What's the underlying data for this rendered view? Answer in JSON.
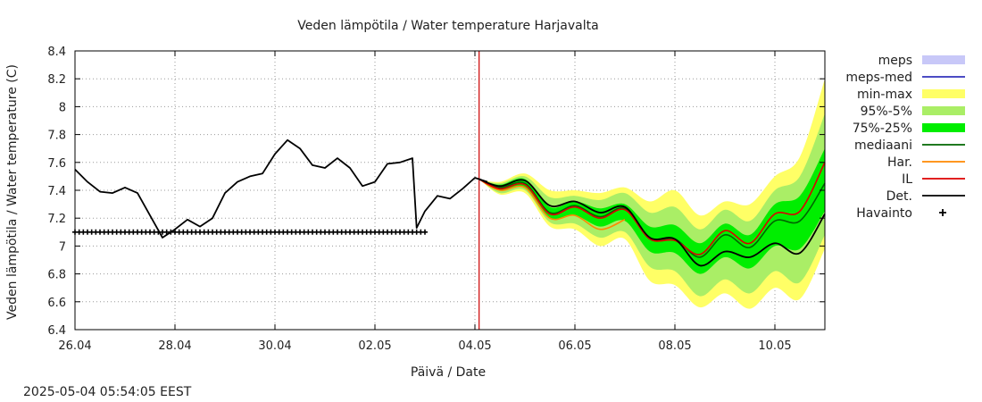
{
  "chart_data": {
    "type": "line",
    "title": "Veden lämpötila / Water temperature Harjavalta",
    "xlabel": "Päivä / Date",
    "ylabel": "Veden lämpötila / Water temperature (C)",
    "timestamp": "2025-05-04  05:54:05 EEST",
    "x_range": [
      "2025-04-26",
      "2025-05-11"
    ],
    "ylim": [
      6.4,
      8.4
    ],
    "x_tick_labels": [
      "26.04",
      "28.04",
      "30.04",
      "02.05",
      "04.05",
      "06.05",
      "08.05",
      "10.05"
    ],
    "x_tick_dates": [
      "2025-04-26",
      "2025-04-28",
      "2025-04-30",
      "2025-05-02",
      "2025-05-04",
      "2025-05-06",
      "2025-05-08",
      "2025-05-10"
    ],
    "y_ticks": [
      "6.4",
      "6.6",
      "6.8",
      "7",
      "7.2",
      "7.4",
      "7.6",
      "7.8",
      "8",
      "8.2",
      "8.4"
    ],
    "grid": true,
    "forecast_start": "2025-05-04 02:00",
    "legend_position": "right",
    "legend": [
      {
        "label": "meps",
        "kind": "fill",
        "color": "#c8c8f8"
      },
      {
        "label": "meps-med",
        "kind": "line",
        "color": "#3333bb"
      },
      {
        "label": "min-max",
        "kind": "fill",
        "color": "#ffff66"
      },
      {
        "label": "95%-5%",
        "kind": "fill",
        "color": "#aaee66"
      },
      {
        "label": "75%-25%",
        "kind": "fill",
        "color": "#00ee00"
      },
      {
        "label": "mediaani",
        "kind": "line",
        "color": "#006600"
      },
      {
        "label": "Har.",
        "kind": "line",
        "color": "#ff8800"
      },
      {
        "label": "IL",
        "kind": "line",
        "color": "#dd0000"
      },
      {
        "label": "Det.",
        "kind": "line",
        "color": "#000000"
      },
      {
        "label": "Havainto",
        "kind": "marker",
        "color": "#000000"
      }
    ],
    "series": {
      "observed": [
        [
          "2025-04-26 00:00",
          7.55
        ],
        [
          "2025-04-26 06:00",
          7.46
        ],
        [
          "2025-04-26 12:00",
          7.39
        ],
        [
          "2025-04-26 18:00",
          7.38
        ],
        [
          "2025-04-27 00:00",
          7.42
        ],
        [
          "2025-04-27 06:00",
          7.38
        ],
        [
          "2025-04-27 12:00",
          7.22
        ],
        [
          "2025-04-27 18:00",
          7.06
        ],
        [
          "2025-04-28 00:00",
          7.12
        ],
        [
          "2025-04-28 06:00",
          7.19
        ],
        [
          "2025-04-28 12:00",
          7.14
        ],
        [
          "2025-04-28 18:00",
          7.2
        ],
        [
          "2025-04-29 00:00",
          7.38
        ],
        [
          "2025-04-29 06:00",
          7.46
        ],
        [
          "2025-04-29 12:00",
          7.5
        ],
        [
          "2025-04-29 18:00",
          7.52
        ],
        [
          "2025-04-30 00:00",
          7.66
        ],
        [
          "2025-04-30 06:00",
          7.76
        ],
        [
          "2025-04-30 12:00",
          7.7
        ],
        [
          "2025-04-30 18:00",
          7.58
        ],
        [
          "2025-05-01 00:00",
          7.56
        ],
        [
          "2025-05-01 06:00",
          7.63
        ],
        [
          "2025-05-01 12:00",
          7.56
        ],
        [
          "2025-05-01 18:00",
          7.43
        ],
        [
          "2025-05-02 00:00",
          7.46
        ],
        [
          "2025-05-02 06:00",
          7.59
        ],
        [
          "2025-05-02 12:00",
          7.6
        ],
        [
          "2025-05-02 18:00",
          7.63
        ],
        [
          "2025-05-02 20:00",
          7.13
        ],
        [
          "2025-05-03 00:00",
          7.25
        ],
        [
          "2025-05-03 06:00",
          7.36
        ],
        [
          "2025-05-03 12:00",
          7.34
        ],
        [
          "2025-05-03 18:00",
          7.41
        ],
        [
          "2025-05-04 00:00",
          7.49
        ],
        [
          "2025-05-04 06:00",
          7.46
        ]
      ],
      "det": [
        [
          "2025-05-04 02:00",
          7.48
        ],
        [
          "2025-05-04 12:00",
          7.43
        ],
        [
          "2025-05-05 00:00",
          7.47
        ],
        [
          "2025-05-05 12:00",
          7.29
        ],
        [
          "2025-05-06 00:00",
          7.32
        ],
        [
          "2025-05-06 12:00",
          7.24
        ],
        [
          "2025-05-07 00:00",
          7.28
        ],
        [
          "2025-05-07 12:00",
          7.06
        ],
        [
          "2025-05-08 00:00",
          7.05
        ],
        [
          "2025-05-08 12:00",
          6.86
        ],
        [
          "2025-05-09 00:00",
          6.96
        ],
        [
          "2025-05-09 12:00",
          6.92
        ],
        [
          "2025-05-10 00:00",
          7.02
        ],
        [
          "2025-05-10 12:00",
          6.95
        ],
        [
          "2025-05-11 00:00",
          7.23
        ]
      ],
      "il": [
        [
          "2025-05-04 02:00",
          7.48
        ],
        [
          "2025-05-04 12:00",
          7.41
        ],
        [
          "2025-05-05 00:00",
          7.44
        ],
        [
          "2025-05-05 12:00",
          7.23
        ],
        [
          "2025-05-06 00:00",
          7.28
        ],
        [
          "2025-05-06 12:00",
          7.2
        ],
        [
          "2025-05-07 00:00",
          7.26
        ],
        [
          "2025-05-07 12:00",
          7.05
        ],
        [
          "2025-05-08 00:00",
          7.04
        ],
        [
          "2025-05-08 12:00",
          6.94
        ],
        [
          "2025-05-09 00:00",
          7.11
        ],
        [
          "2025-05-09 12:00",
          7.02
        ],
        [
          "2025-05-10 00:00",
          7.23
        ],
        [
          "2025-05-10 12:00",
          7.25
        ],
        [
          "2025-05-11 00:00",
          7.6
        ]
      ],
      "har": [
        [
          "2025-05-04 02:00",
          7.48
        ],
        [
          "2025-05-04 12:00",
          7.4
        ],
        [
          "2025-05-05 00:00",
          7.42
        ],
        [
          "2025-05-05 12:00",
          7.2
        ],
        [
          "2025-05-06 00:00",
          7.22
        ],
        [
          "2025-05-06 12:00",
          7.12
        ],
        [
          "2025-05-07 00:00",
          7.19
        ]
      ],
      "median": [
        [
          "2025-05-04 02:00",
          7.48
        ],
        [
          "2025-05-04 12:00",
          7.42
        ],
        [
          "2025-05-05 00:00",
          7.45
        ],
        [
          "2025-05-05 12:00",
          7.24
        ],
        [
          "2025-05-06 00:00",
          7.29
        ],
        [
          "2025-05-06 12:00",
          7.21
        ],
        [
          "2025-05-07 00:00",
          7.27
        ],
        [
          "2025-05-07 12:00",
          7.05
        ],
        [
          "2025-05-08 00:00",
          7.05
        ],
        [
          "2025-05-08 12:00",
          6.92
        ],
        [
          "2025-05-09 00:00",
          7.08
        ],
        [
          "2025-05-09 12:00",
          6.99
        ],
        [
          "2025-05-10 00:00",
          7.18
        ],
        [
          "2025-05-10 12:00",
          7.18
        ],
        [
          "2025-05-11 00:00",
          7.45
        ]
      ],
      "band_min_max": [
        [
          "2025-05-04 02:00",
          7.48,
          7.48
        ],
        [
          "2025-05-04 12:00",
          7.37,
          7.46
        ],
        [
          "2025-05-05 00:00",
          7.38,
          7.52
        ],
        [
          "2025-05-05 12:00",
          7.14,
          7.4
        ],
        [
          "2025-05-06 00:00",
          7.12,
          7.4
        ],
        [
          "2025-05-06 12:00",
          7.0,
          7.38
        ],
        [
          "2025-05-07 00:00",
          7.05,
          7.42
        ],
        [
          "2025-05-07 12:00",
          6.75,
          7.32
        ],
        [
          "2025-05-08 00:00",
          6.72,
          7.4
        ],
        [
          "2025-05-08 12:00",
          6.56,
          7.22
        ],
        [
          "2025-05-09 00:00",
          6.66,
          7.32
        ],
        [
          "2025-05-09 12:00",
          6.55,
          7.3
        ],
        [
          "2025-05-10 00:00",
          6.7,
          7.5
        ],
        [
          "2025-05-10 12:00",
          6.62,
          7.64
        ],
        [
          "2025-05-11 00:00",
          6.98,
          8.2
        ]
      ],
      "band_95_5": [
        [
          "2025-05-04 02:00",
          7.48,
          7.48
        ],
        [
          "2025-05-04 12:00",
          7.38,
          7.45
        ],
        [
          "2025-05-05 00:00",
          7.4,
          7.5
        ],
        [
          "2025-05-05 12:00",
          7.17,
          7.35
        ],
        [
          "2025-05-06 00:00",
          7.16,
          7.36
        ],
        [
          "2025-05-06 12:00",
          7.06,
          7.33
        ],
        [
          "2025-05-07 00:00",
          7.1,
          7.38
        ],
        [
          "2025-05-07 12:00",
          6.85,
          7.24
        ],
        [
          "2025-05-08 00:00",
          6.82,
          7.28
        ],
        [
          "2025-05-08 12:00",
          6.64,
          7.12
        ],
        [
          "2025-05-09 00:00",
          6.76,
          7.26
        ],
        [
          "2025-05-09 12:00",
          6.66,
          7.18
        ],
        [
          "2025-05-10 00:00",
          6.82,
          7.4
        ],
        [
          "2025-05-10 12:00",
          6.74,
          7.5
        ],
        [
          "2025-05-11 00:00",
          7.08,
          7.95
        ]
      ],
      "band_75_25": [
        [
          "2025-05-04 02:00",
          7.48,
          7.48
        ],
        [
          "2025-05-04 12:00",
          7.4,
          7.44
        ],
        [
          "2025-05-05 00:00",
          7.42,
          7.48
        ],
        [
          "2025-05-05 12:00",
          7.2,
          7.28
        ],
        [
          "2025-05-06 00:00",
          7.22,
          7.32
        ],
        [
          "2025-05-06 12:00",
          7.14,
          7.27
        ],
        [
          "2025-05-07 00:00",
          7.18,
          7.3
        ],
        [
          "2025-05-07 12:00",
          6.96,
          7.14
        ],
        [
          "2025-05-08 00:00",
          6.95,
          7.15
        ],
        [
          "2025-05-08 12:00",
          6.8,
          7.02
        ],
        [
          "2025-05-09 00:00",
          6.92,
          7.16
        ],
        [
          "2025-05-09 12:00",
          6.84,
          7.08
        ],
        [
          "2025-05-10 00:00",
          7.0,
          7.3
        ],
        [
          "2025-05-10 12:00",
          6.98,
          7.36
        ],
        [
          "2025-05-11 00:00",
          7.25,
          7.7
        ]
      ],
      "havainto": {
        "y": 7.1,
        "from": "2025-04-26 00:00",
        "to": "2025-05-03 00:00",
        "step_hours": 2
      }
    }
  }
}
